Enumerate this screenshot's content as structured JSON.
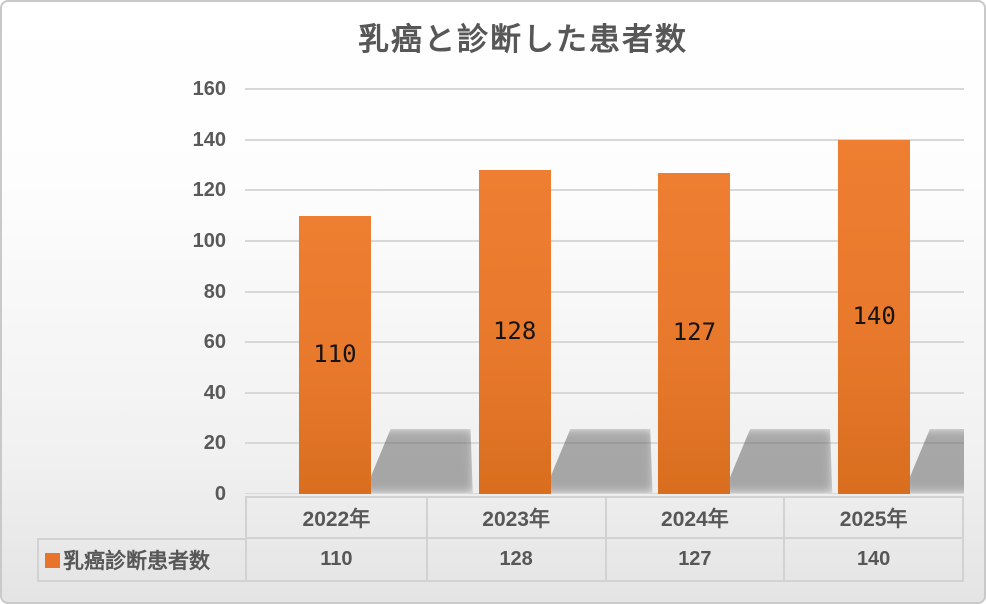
{
  "chart_data": {
    "type": "bar",
    "title": "乳癌と診断した患者数",
    "categories": [
      "2022年",
      "2023年",
      "2024年",
      "2025年"
    ],
    "series": [
      {
        "name": "乳癌診断患者数",
        "values": [
          110,
          128,
          127,
          140
        ]
      }
    ],
    "data_labels": [
      "110",
      "128",
      "127",
      "140"
    ],
    "xlabel": "",
    "ylabel": "",
    "ylim": [
      0,
      160
    ],
    "ytick_step": 20,
    "yticks": [
      0,
      20,
      40,
      60,
      80,
      100,
      120,
      140,
      160
    ],
    "grid": true,
    "legend_position": "bottom-table",
    "colors": {
      "bar": "#ED7D31",
      "bar_gradient_bottom": "#D96E1F",
      "data_label": "#141414",
      "axis_text": "#595959",
      "title_text": "#575757",
      "gridline": "#d8d8d8",
      "table_border": "#d2d2d2",
      "legend_marker": "#E8732A"
    }
  },
  "data_table": {
    "legend_label": "乳癌診断患者数",
    "columns": [
      "2022年",
      "2023年",
      "2024年",
      "2025年"
    ],
    "values": [
      "110",
      "128",
      "127",
      "140"
    ]
  }
}
